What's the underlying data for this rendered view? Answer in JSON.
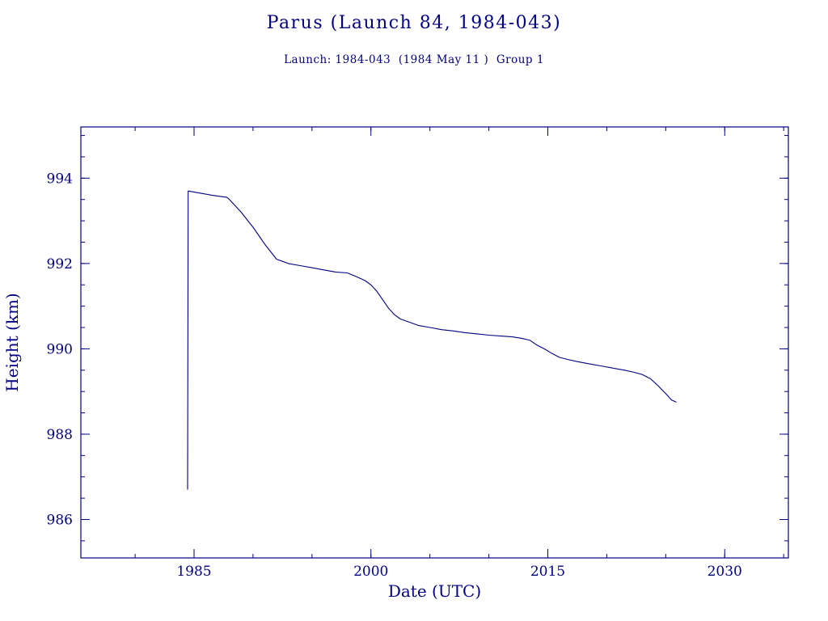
{
  "chart_data": {
    "type": "line",
    "title": "Parus (Launch 84, 1984-043)",
    "subtitle": "Launch: 1984-043  (1984 May 11 )  Group 1",
    "xlabel": "Date (UTC)",
    "ylabel": "Height (km)",
    "xlim": [
      1975.4,
      2035.4
    ],
    "ylim": [
      985.1,
      995.2
    ],
    "x_ticks": [
      1985,
      2000,
      2015,
      2030
    ],
    "x_minor_step": 5,
    "y_ticks": [
      986,
      988,
      990,
      992,
      994
    ],
    "y_minor_step": 0.5,
    "line_color": "#000080",
    "grid": false,
    "legend": "none",
    "series": [
      {
        "name": "height-km",
        "points": [
          [
            1984.45,
            986.7
          ],
          [
            1984.5,
            993.7
          ],
          [
            1985.5,
            993.65
          ],
          [
            1986.5,
            993.6
          ],
          [
            1987.8,
            993.55
          ],
          [
            1988.0,
            993.5
          ],
          [
            1989.0,
            993.2
          ],
          [
            1990.0,
            992.85
          ],
          [
            1991.0,
            992.45
          ],
          [
            1992.0,
            992.1
          ],
          [
            1992.5,
            992.05
          ],
          [
            1993.0,
            992.0
          ],
          [
            1994.0,
            991.95
          ],
          [
            1995.0,
            991.9
          ],
          [
            1996.0,
            991.85
          ],
          [
            1997.0,
            991.8
          ],
          [
            1998.0,
            991.78
          ],
          [
            1998.7,
            991.7
          ],
          [
            1999.5,
            991.6
          ],
          [
            2000.0,
            991.5
          ],
          [
            2000.5,
            991.35
          ],
          [
            2001.0,
            991.15
          ],
          [
            2001.5,
            990.95
          ],
          [
            2002.0,
            990.8
          ],
          [
            2002.5,
            990.7
          ],
          [
            2003.0,
            990.65
          ],
          [
            2004.0,
            990.55
          ],
          [
            2005.0,
            990.5
          ],
          [
            2006.0,
            990.45
          ],
          [
            2007.0,
            990.42
          ],
          [
            2008.0,
            990.38
          ],
          [
            2009.0,
            990.35
          ],
          [
            2010.0,
            990.32
          ],
          [
            2011.0,
            990.3
          ],
          [
            2012.0,
            990.28
          ],
          [
            2012.7,
            990.25
          ],
          [
            2013.5,
            990.2
          ],
          [
            2014.0,
            990.1
          ],
          [
            2014.7,
            990.0
          ],
          [
            2015.3,
            989.9
          ],
          [
            2016.0,
            989.8
          ],
          [
            2016.7,
            989.75
          ],
          [
            2017.5,
            989.7
          ],
          [
            2018.5,
            989.65
          ],
          [
            2019.5,
            989.6
          ],
          [
            2020.5,
            989.55
          ],
          [
            2021.5,
            989.5
          ],
          [
            2022.3,
            989.45
          ],
          [
            2023.0,
            989.4
          ],
          [
            2023.7,
            989.3
          ],
          [
            2024.3,
            989.15
          ],
          [
            2025.0,
            988.95
          ],
          [
            2025.5,
            988.8
          ],
          [
            2025.9,
            988.75
          ]
        ]
      }
    ]
  }
}
